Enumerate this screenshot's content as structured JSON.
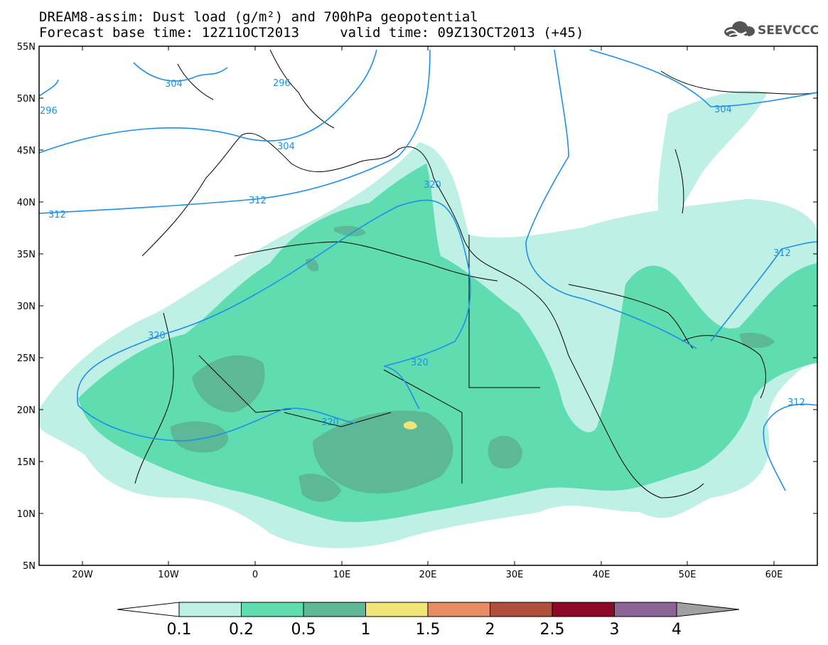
{
  "header": {
    "title_line1": "DREAM8-assim: Dust load (g/m²) and 700hPa geopotential",
    "title_line2": "Forecast base time: 12Z11OCT2013     valid time: 09Z13OCT2013 (+45)",
    "logo_text": "SEEVCCC",
    "logo_icon": "cloud-icon"
  },
  "map": {
    "lat_labels": [
      "55N",
      "50N",
      "45N",
      "40N",
      "35N",
      "30N",
      "25N",
      "20N",
      "15N",
      "10N",
      "5N"
    ],
    "lon_labels": [
      "20W",
      "10W",
      "0",
      "10E",
      "20E",
      "30E",
      "40E",
      "50E",
      "60E"
    ],
    "contour_labels": [
      "304",
      "296",
      "304",
      "304",
      "312",
      "312",
      "320",
      "320",
      "320",
      "320",
      "312",
      "312",
      "296"
    ],
    "colors": {
      "contour": "#1e90e8",
      "coast": "#000000"
    }
  },
  "colorbar": {
    "labels": [
      "0.1",
      "0.2",
      "0.5",
      "1",
      "1.5",
      "2",
      "2.5",
      "3",
      "4"
    ],
    "colors": [
      "#bff0e6",
      "#5fdcb0",
      "#5cb896",
      "#f0e678",
      "#e88c64",
      "#b0503c",
      "#8c0a28",
      "#8c6496"
    ],
    "end_colors": {
      "low": "#ffffff",
      "high": "#a0a0a0"
    }
  }
}
